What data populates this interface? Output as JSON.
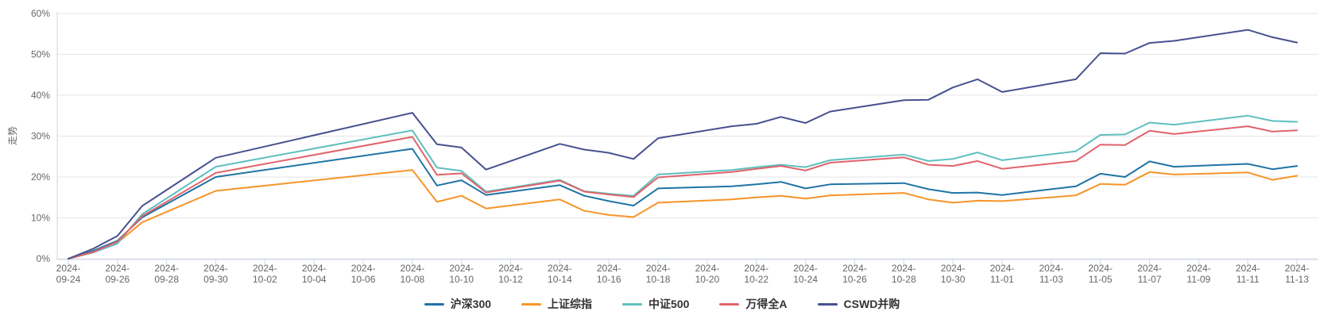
{
  "chart_data": {
    "type": "line",
    "title": "",
    "ylabel": "走势",
    "xlabel": "",
    "grid": true,
    "legend_position": "bottom-center",
    "ylim": [
      0,
      60
    ],
    "y_ticks": [
      "0%",
      "10%",
      "20%",
      "30%",
      "40%",
      "50%",
      "60%"
    ],
    "x_axis_span_days": 50,
    "x_tick_labels": [
      {
        "year": "2024-",
        "md": "09-24",
        "day": 0
      },
      {
        "year": "2024-",
        "md": "09-26",
        "day": 2
      },
      {
        "year": "2024-",
        "md": "09-28",
        "day": 4
      },
      {
        "year": "2024-",
        "md": "09-30",
        "day": 6
      },
      {
        "year": "2024-",
        "md": "10-02",
        "day": 8
      },
      {
        "year": "2024-",
        "md": "10-04",
        "day": 10
      },
      {
        "year": "2024-",
        "md": "10-06",
        "day": 12
      },
      {
        "year": "2024-",
        "md": "10-08",
        "day": 14
      },
      {
        "year": "2024-",
        "md": "10-10",
        "day": 16
      },
      {
        "year": "2024-",
        "md": "10-12",
        "day": 18
      },
      {
        "year": "2024-",
        "md": "10-14",
        "day": 20
      },
      {
        "year": "2024-",
        "md": "10-16",
        "day": 22
      },
      {
        "year": "2024-",
        "md": "10-18",
        "day": 24
      },
      {
        "year": "2024-",
        "md": "10-20",
        "day": 26
      },
      {
        "year": "2024-",
        "md": "10-22",
        "day": 28
      },
      {
        "year": "2024-",
        "md": "10-24",
        "day": 30
      },
      {
        "year": "2024-",
        "md": "10-26",
        "day": 32
      },
      {
        "year": "2024-",
        "md": "10-28",
        "day": 34
      },
      {
        "year": "2024-",
        "md": "10-30",
        "day": 36
      },
      {
        "year": "2024-",
        "md": "11-01",
        "day": 38
      },
      {
        "year": "2024-",
        "md": "11-03",
        "day": 40
      },
      {
        "year": "2024-",
        "md": "11-05",
        "day": 42
      },
      {
        "year": "2024-",
        "md": "11-07",
        "day": 44
      },
      {
        "year": "2024-",
        "md": "11-09",
        "day": 46
      },
      {
        "year": "2024-",
        "md": "11-11",
        "day": 48
      },
      {
        "year": "2024-",
        "md": "11-13",
        "day": 50
      }
    ],
    "points": [
      {
        "date": "2024-09-24",
        "day": 0
      },
      {
        "date": "2024-09-25",
        "day": 1
      },
      {
        "date": "2024-09-26",
        "day": 2
      },
      {
        "date": "2024-09-27",
        "day": 3
      },
      {
        "date": "2024-09-30",
        "day": 6
      },
      {
        "date": "2024-10-08",
        "day": 14
      },
      {
        "date": "2024-10-09",
        "day": 15
      },
      {
        "date": "2024-10-10",
        "day": 16
      },
      {
        "date": "2024-10-11",
        "day": 17
      },
      {
        "date": "2024-10-14",
        "day": 20
      },
      {
        "date": "2024-10-15",
        "day": 21
      },
      {
        "date": "2024-10-16",
        "day": 22
      },
      {
        "date": "2024-10-17",
        "day": 23
      },
      {
        "date": "2024-10-18",
        "day": 24
      },
      {
        "date": "2024-10-21",
        "day": 27
      },
      {
        "date": "2024-10-22",
        "day": 28
      },
      {
        "date": "2024-10-23",
        "day": 29
      },
      {
        "date": "2024-10-24",
        "day": 30
      },
      {
        "date": "2024-10-25",
        "day": 31
      },
      {
        "date": "2024-10-28",
        "day": 34
      },
      {
        "date": "2024-10-29",
        "day": 35
      },
      {
        "date": "2024-10-30",
        "day": 36
      },
      {
        "date": "2024-10-31",
        "day": 37
      },
      {
        "date": "2024-11-01",
        "day": 38
      },
      {
        "date": "2024-11-04",
        "day": 41
      },
      {
        "date": "2024-11-05",
        "day": 42
      },
      {
        "date": "2024-11-06",
        "day": 43
      },
      {
        "date": "2024-11-07",
        "day": 44
      },
      {
        "date": "2024-11-08",
        "day": 45
      },
      {
        "date": "2024-11-11",
        "day": 48
      },
      {
        "date": "2024-11-12",
        "day": 49
      },
      {
        "date": "2024-11-13",
        "day": 50
      }
    ],
    "series": [
      {
        "key": "hs300",
        "name": "沪深300",
        "color": "#1f74a5",
        "values": [
          0,
          1.9,
          4.4,
          10.1,
          20.0,
          26.9,
          17.9,
          19.2,
          15.6,
          18.0,
          15.4,
          14.1,
          13.0,
          17.2,
          17.7,
          18.2,
          18.8,
          17.2,
          18.2,
          18.5,
          17.0,
          16.1,
          16.2,
          15.6,
          17.7,
          20.8,
          20.0,
          23.8,
          22.5,
          23.2,
          21.9,
          22.7
        ]
      },
      {
        "key": "szzz",
        "name": "上证综指",
        "color": "#f79429",
        "values": [
          0,
          1.6,
          3.9,
          8.9,
          16.6,
          21.7,
          13.9,
          15.4,
          12.3,
          14.5,
          11.7,
          10.7,
          10.2,
          13.7,
          14.5,
          15.0,
          15.4,
          14.7,
          15.5,
          16.1,
          14.5,
          13.7,
          14.2,
          14.1,
          15.5,
          18.3,
          18.1,
          21.2,
          20.6,
          21.1,
          19.3,
          20.3
        ]
      },
      {
        "key": "zz500",
        "name": "中证500",
        "color": "#5fbfbf",
        "values": [
          0,
          1.5,
          3.7,
          10.9,
          22.5,
          31.4,
          22.3,
          21.5,
          16.4,
          19.3,
          16.5,
          15.9,
          15.4,
          20.6,
          21.7,
          22.4,
          23.0,
          22.4,
          24.1,
          25.5,
          23.9,
          24.4,
          26.0,
          24.1,
          26.3,
          30.3,
          30.4,
          33.3,
          32.8,
          35.0,
          33.7,
          33.5
        ]
      },
      {
        "key": "wdqa",
        "name": "万得全A",
        "color": "#e0636b",
        "values": [
          0,
          1.6,
          4.2,
          10.4,
          21.0,
          29.8,
          20.5,
          20.9,
          16.2,
          19.1,
          16.4,
          15.7,
          15.1,
          19.9,
          21.2,
          22.0,
          22.7,
          21.6,
          23.5,
          24.8,
          23.0,
          22.7,
          23.9,
          22.0,
          23.9,
          27.9,
          27.8,
          31.3,
          30.5,
          32.4,
          31.1,
          31.4
        ]
      },
      {
        "key": "cswd",
        "name": "CSWD并购",
        "color": "#47518f",
        "values": [
          0,
          2.4,
          5.6,
          12.9,
          24.7,
          35.7,
          28.0,
          27.2,
          21.8,
          28.1,
          26.7,
          25.9,
          24.4,
          29.5,
          32.4,
          33.0,
          34.7,
          33.2,
          36.0,
          38.8,
          38.9,
          41.9,
          43.9,
          40.8,
          43.9,
          50.3,
          50.2,
          52.8,
          53.3,
          56.0,
          54.2,
          52.9
        ]
      }
    ],
    "colors": {
      "grid": "#e6e6e6",
      "axis_line": "#ccd6eb",
      "tick_label": "#666666",
      "legend_text": "#333333",
      "background": "#ffffff"
    }
  }
}
